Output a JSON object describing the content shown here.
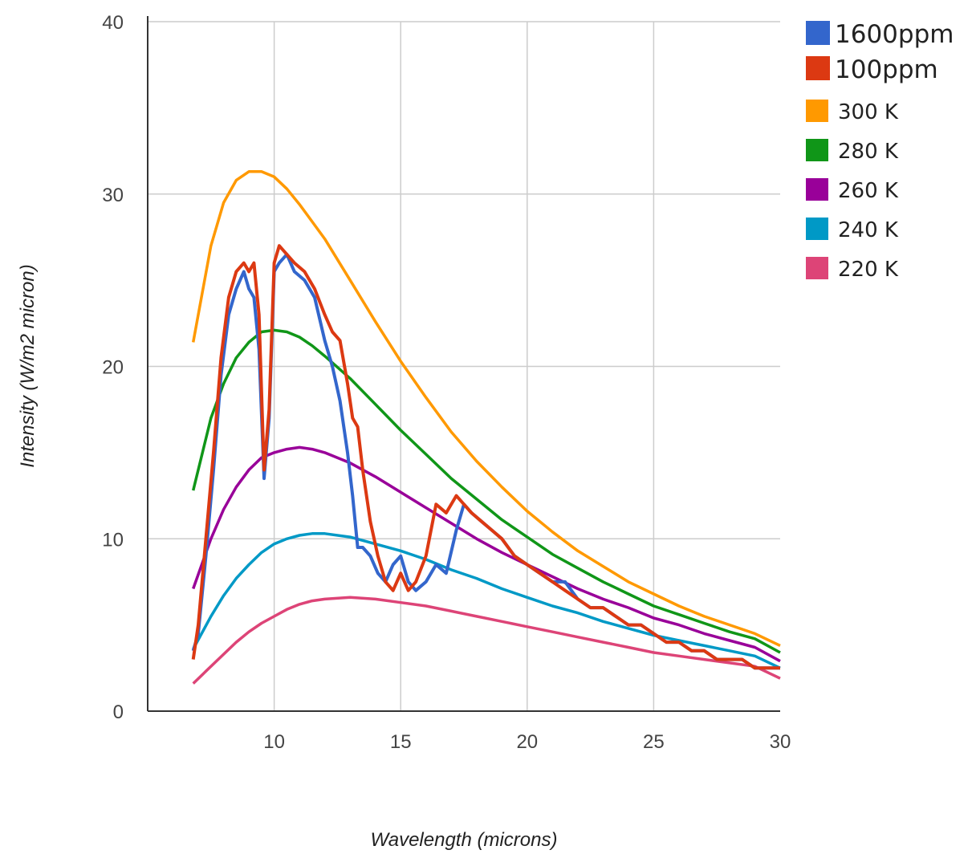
{
  "chart_data": {
    "type": "line",
    "title": "",
    "xlabel": "Wavelength (microns)",
    "ylabel": "Intensity (W/m2 micron)",
    "xlim": [
      5,
      30
    ],
    "ylim": [
      0,
      40
    ],
    "x_ticks": [
      10,
      15,
      20,
      25,
      30
    ],
    "y_ticks": [
      0,
      10,
      20,
      30,
      40
    ],
    "grid": true,
    "legend_position": "top-right",
    "series": [
      {
        "name": "1600ppm",
        "color": "#3366cc",
        "emphasis": true,
        "x": [
          6.8,
          7.0,
          7.3,
          7.6,
          7.9,
          8.2,
          8.5,
          8.8,
          9.0,
          9.2,
          9.4,
          9.6,
          9.8,
          10.0,
          10.2,
          10.5,
          10.8,
          11.2,
          11.6,
          12.0,
          12.3,
          12.6,
          12.9,
          13.1,
          13.3,
          13.5,
          13.8,
          14.1,
          14.4,
          14.7,
          15.0,
          15.3,
          15.6,
          16.0,
          16.4,
          16.8,
          17.2,
          17.5,
          17.8,
          18.2,
          18.6,
          19.0,
          19.5,
          20.0,
          20.5,
          21.0,
          21.5,
          22.0,
          22.5,
          23.0,
          23.5,
          24.0,
          24.5,
          25.0,
          25.5,
          26.0,
          26.5,
          27.0,
          27.5,
          28.0,
          28.5,
          29.0,
          29.5,
          30.0
        ],
        "y": [
          3.5,
          4.5,
          9.0,
          14.0,
          19.5,
          23.0,
          24.5,
          25.5,
          24.5,
          24.0,
          21.0,
          13.5,
          17.0,
          25.5,
          26.0,
          26.5,
          25.5,
          25.0,
          24.0,
          21.5,
          20.0,
          18.0,
          15.0,
          12.5,
          9.5,
          9.5,
          9.0,
          8.0,
          7.5,
          8.5,
          9.0,
          7.5,
          7.0,
          7.5,
          8.5,
          8.0,
          10.5,
          12.0,
          11.5,
          11.0,
          10.5,
          10.0,
          9.0,
          8.5,
          8.0,
          7.5,
          7.5,
          6.5,
          6.0,
          6.0,
          5.5,
          5.0,
          5.0,
          4.5,
          4.0,
          4.0,
          3.5,
          3.5,
          3.0,
          3.0,
          3.0,
          2.5,
          2.5,
          2.5
        ]
      },
      {
        "name": "100ppm",
        "color": "#dc3912",
        "emphasis": true,
        "x": [
          6.8,
          7.0,
          7.3,
          7.6,
          7.9,
          8.2,
          8.5,
          8.8,
          9.0,
          9.2,
          9.4,
          9.6,
          9.8,
          10.0,
          10.2,
          10.5,
          10.8,
          11.2,
          11.6,
          12.0,
          12.3,
          12.6,
          12.9,
          13.1,
          13.3,
          13.5,
          13.8,
          14.1,
          14.4,
          14.7,
          15.0,
          15.3,
          15.6,
          16.0,
          16.4,
          16.8,
          17.2,
          17.5,
          17.8,
          18.2,
          18.6,
          19.0,
          19.5,
          20.0,
          20.5,
          21.0,
          21.5,
          22.0,
          22.5,
          23.0,
          23.5,
          24.0,
          24.5,
          25.0,
          25.5,
          26.0,
          26.5,
          27.0,
          27.5,
          28.0,
          28.5,
          29.0,
          29.5,
          30.0
        ],
        "y": [
          3.0,
          5.0,
          10.0,
          15.0,
          20.5,
          24.0,
          25.5,
          26.0,
          25.5,
          26.0,
          23.0,
          14.0,
          17.5,
          26.0,
          27.0,
          26.5,
          26.0,
          25.5,
          24.5,
          23.0,
          22.0,
          21.5,
          19.0,
          17.0,
          16.5,
          14.0,
          11.0,
          9.0,
          7.5,
          7.0,
          8.0,
          7.0,
          7.5,
          9.0,
          12.0,
          11.5,
          12.5,
          12.0,
          11.5,
          11.0,
          10.5,
          10.0,
          9.0,
          8.5,
          8.0,
          7.5,
          7.0,
          6.5,
          6.0,
          6.0,
          5.5,
          5.0,
          5.0,
          4.5,
          4.0,
          4.0,
          3.5,
          3.5,
          3.0,
          3.0,
          3.0,
          2.5,
          2.5,
          2.5
        ]
      },
      {
        "name": "300 K",
        "color": "#ff9900",
        "emphasis": false,
        "x": [
          6.8,
          7.5,
          8.0,
          8.5,
          9.0,
          9.5,
          10.0,
          10.5,
          11.0,
          11.5,
          12.0,
          13.0,
          14.0,
          15.0,
          16.0,
          17.0,
          18.0,
          19.0,
          20.0,
          21.0,
          22.0,
          23.0,
          24.0,
          25.0,
          26.0,
          27.0,
          28.0,
          29.0,
          30.0
        ],
        "y": [
          21.4,
          27.0,
          29.5,
          30.8,
          31.3,
          31.3,
          31.0,
          30.3,
          29.4,
          28.4,
          27.4,
          25.0,
          22.6,
          20.3,
          18.2,
          16.2,
          14.5,
          13.0,
          11.6,
          10.4,
          9.3,
          8.4,
          7.5,
          6.8,
          6.1,
          5.5,
          5.0,
          4.5,
          3.8
        ]
      },
      {
        "name": "280 K",
        "color": "#109618",
        "emphasis": false,
        "x": [
          6.8,
          7.5,
          8.0,
          8.5,
          9.0,
          9.5,
          10.0,
          10.5,
          11.0,
          11.5,
          12.0,
          13.0,
          14.0,
          15.0,
          16.0,
          17.0,
          18.0,
          19.0,
          20.0,
          21.0,
          22.0,
          23.0,
          24.0,
          25.0,
          26.0,
          27.0,
          28.0,
          29.0,
          30.0
        ],
        "y": [
          12.8,
          17.0,
          19.0,
          20.5,
          21.4,
          22.0,
          22.1,
          22.0,
          21.7,
          21.2,
          20.6,
          19.3,
          17.8,
          16.3,
          14.9,
          13.5,
          12.3,
          11.1,
          10.1,
          9.1,
          8.3,
          7.5,
          6.8,
          6.1,
          5.6,
          5.1,
          4.6,
          4.2,
          3.4
        ]
      },
      {
        "name": "260 K",
        "color": "#990099",
        "emphasis": false,
        "x": [
          6.8,
          7.5,
          8.0,
          8.5,
          9.0,
          9.5,
          10.0,
          10.5,
          11.0,
          11.5,
          12.0,
          13.0,
          14.0,
          15.0,
          16.0,
          17.0,
          18.0,
          19.0,
          20.0,
          21.0,
          22.0,
          23.0,
          24.0,
          25.0,
          26.0,
          27.0,
          28.0,
          29.0,
          30.0
        ],
        "y": [
          7.1,
          10.0,
          11.7,
          13.0,
          14.0,
          14.7,
          15.0,
          15.2,
          15.3,
          15.2,
          15.0,
          14.4,
          13.6,
          12.7,
          11.8,
          10.9,
          10.0,
          9.2,
          8.5,
          7.8,
          7.1,
          6.5,
          6.0,
          5.4,
          5.0,
          4.5,
          4.1,
          3.7,
          2.9
        ]
      },
      {
        "name": "240 K",
        "color": "#0099c6",
        "emphasis": false,
        "x": [
          6.8,
          7.5,
          8.0,
          8.5,
          9.0,
          9.5,
          10.0,
          10.5,
          11.0,
          11.5,
          12.0,
          13.0,
          14.0,
          15.0,
          16.0,
          17.0,
          18.0,
          19.0,
          20.0,
          21.0,
          22.0,
          23.0,
          24.0,
          25.0,
          26.0,
          27.0,
          28.0,
          29.0,
          30.0
        ],
        "y": [
          3.6,
          5.5,
          6.7,
          7.7,
          8.5,
          9.2,
          9.7,
          10.0,
          10.2,
          10.3,
          10.3,
          10.1,
          9.7,
          9.3,
          8.8,
          8.2,
          7.7,
          7.1,
          6.6,
          6.1,
          5.7,
          5.2,
          4.8,
          4.4,
          4.1,
          3.8,
          3.5,
          3.2,
          2.5
        ]
      },
      {
        "name": "220 K",
        "color": "#dd4477",
        "emphasis": false,
        "x": [
          6.8,
          7.5,
          8.0,
          8.5,
          9.0,
          9.5,
          10.0,
          10.5,
          11.0,
          11.5,
          12.0,
          13.0,
          14.0,
          15.0,
          16.0,
          17.0,
          18.0,
          19.0,
          20.0,
          21.0,
          22.0,
          23.0,
          24.0,
          25.0,
          26.0,
          27.0,
          28.0,
          29.0,
          30.0
        ],
        "y": [
          1.6,
          2.6,
          3.3,
          4.0,
          4.6,
          5.1,
          5.5,
          5.9,
          6.2,
          6.4,
          6.5,
          6.6,
          6.5,
          6.3,
          6.1,
          5.8,
          5.5,
          5.2,
          4.9,
          4.6,
          4.3,
          4.0,
          3.7,
          3.4,
          3.2,
          3.0,
          2.8,
          2.6,
          1.9
        ]
      }
    ]
  }
}
